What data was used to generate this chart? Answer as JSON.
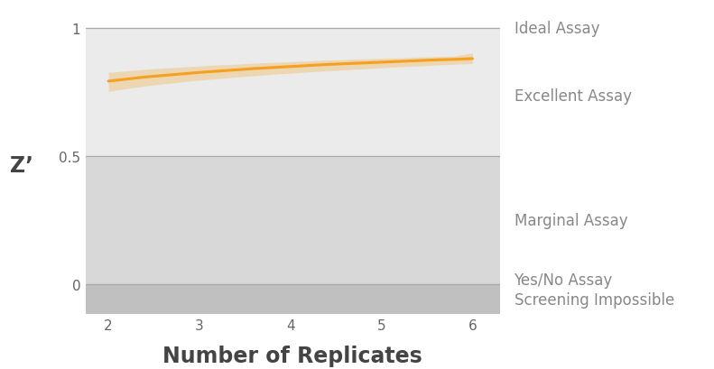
{
  "xlabel": "Number of Replicates",
  "ylabel": "Z’",
  "x": [
    2,
    2.2,
    2.4,
    2.6,
    2.8,
    3.0,
    3.2,
    3.4,
    3.6,
    3.8,
    4.0,
    4.2,
    4.4,
    4.6,
    4.8,
    5.0,
    5.2,
    5.4,
    5.6,
    5.8,
    6.0
  ],
  "y_mean": [
    0.792,
    0.8,
    0.808,
    0.814,
    0.82,
    0.826,
    0.831,
    0.836,
    0.841,
    0.845,
    0.849,
    0.853,
    0.857,
    0.86,
    0.863,
    0.866,
    0.869,
    0.872,
    0.875,
    0.877,
    0.88
  ],
  "y_upper": [
    0.826,
    0.832,
    0.838,
    0.843,
    0.847,
    0.851,
    0.855,
    0.858,
    0.862,
    0.865,
    0.868,
    0.871,
    0.874,
    0.876,
    0.879,
    0.881,
    0.883,
    0.886,
    0.888,
    0.89,
    0.902
  ],
  "y_lower": [
    0.752,
    0.763,
    0.773,
    0.781,
    0.789,
    0.796,
    0.802,
    0.808,
    0.813,
    0.819,
    0.823,
    0.828,
    0.832,
    0.836,
    0.84,
    0.844,
    0.848,
    0.851,
    0.855,
    0.858,
    0.861
  ],
  "xlim": [
    1.75,
    6.3
  ],
  "ylim": [
    -0.115,
    1.04
  ],
  "line_color": "#F5A020",
  "band_color": "#F5A020",
  "band_alpha": 0.28,
  "zone_ideal_color": "#EBEBEB",
  "zone_marginal_color": "#D8D8D8",
  "zone_impossible_color": "#C0C0C0",
  "hline_color": "#AAAAAA",
  "label_color": "#888888",
  "label_fontsize": 12,
  "tick_fontsize": 11,
  "xlabel_fontsize": 17,
  "ylabel_fontsize": 17,
  "labels": {
    "Ideal Assay": 1.0,
    "Excellent Assay": 0.735,
    "Marginal Assay": 0.25,
    "Yes/No Assay": 0.018,
    "Screening Impossible": -0.062
  }
}
